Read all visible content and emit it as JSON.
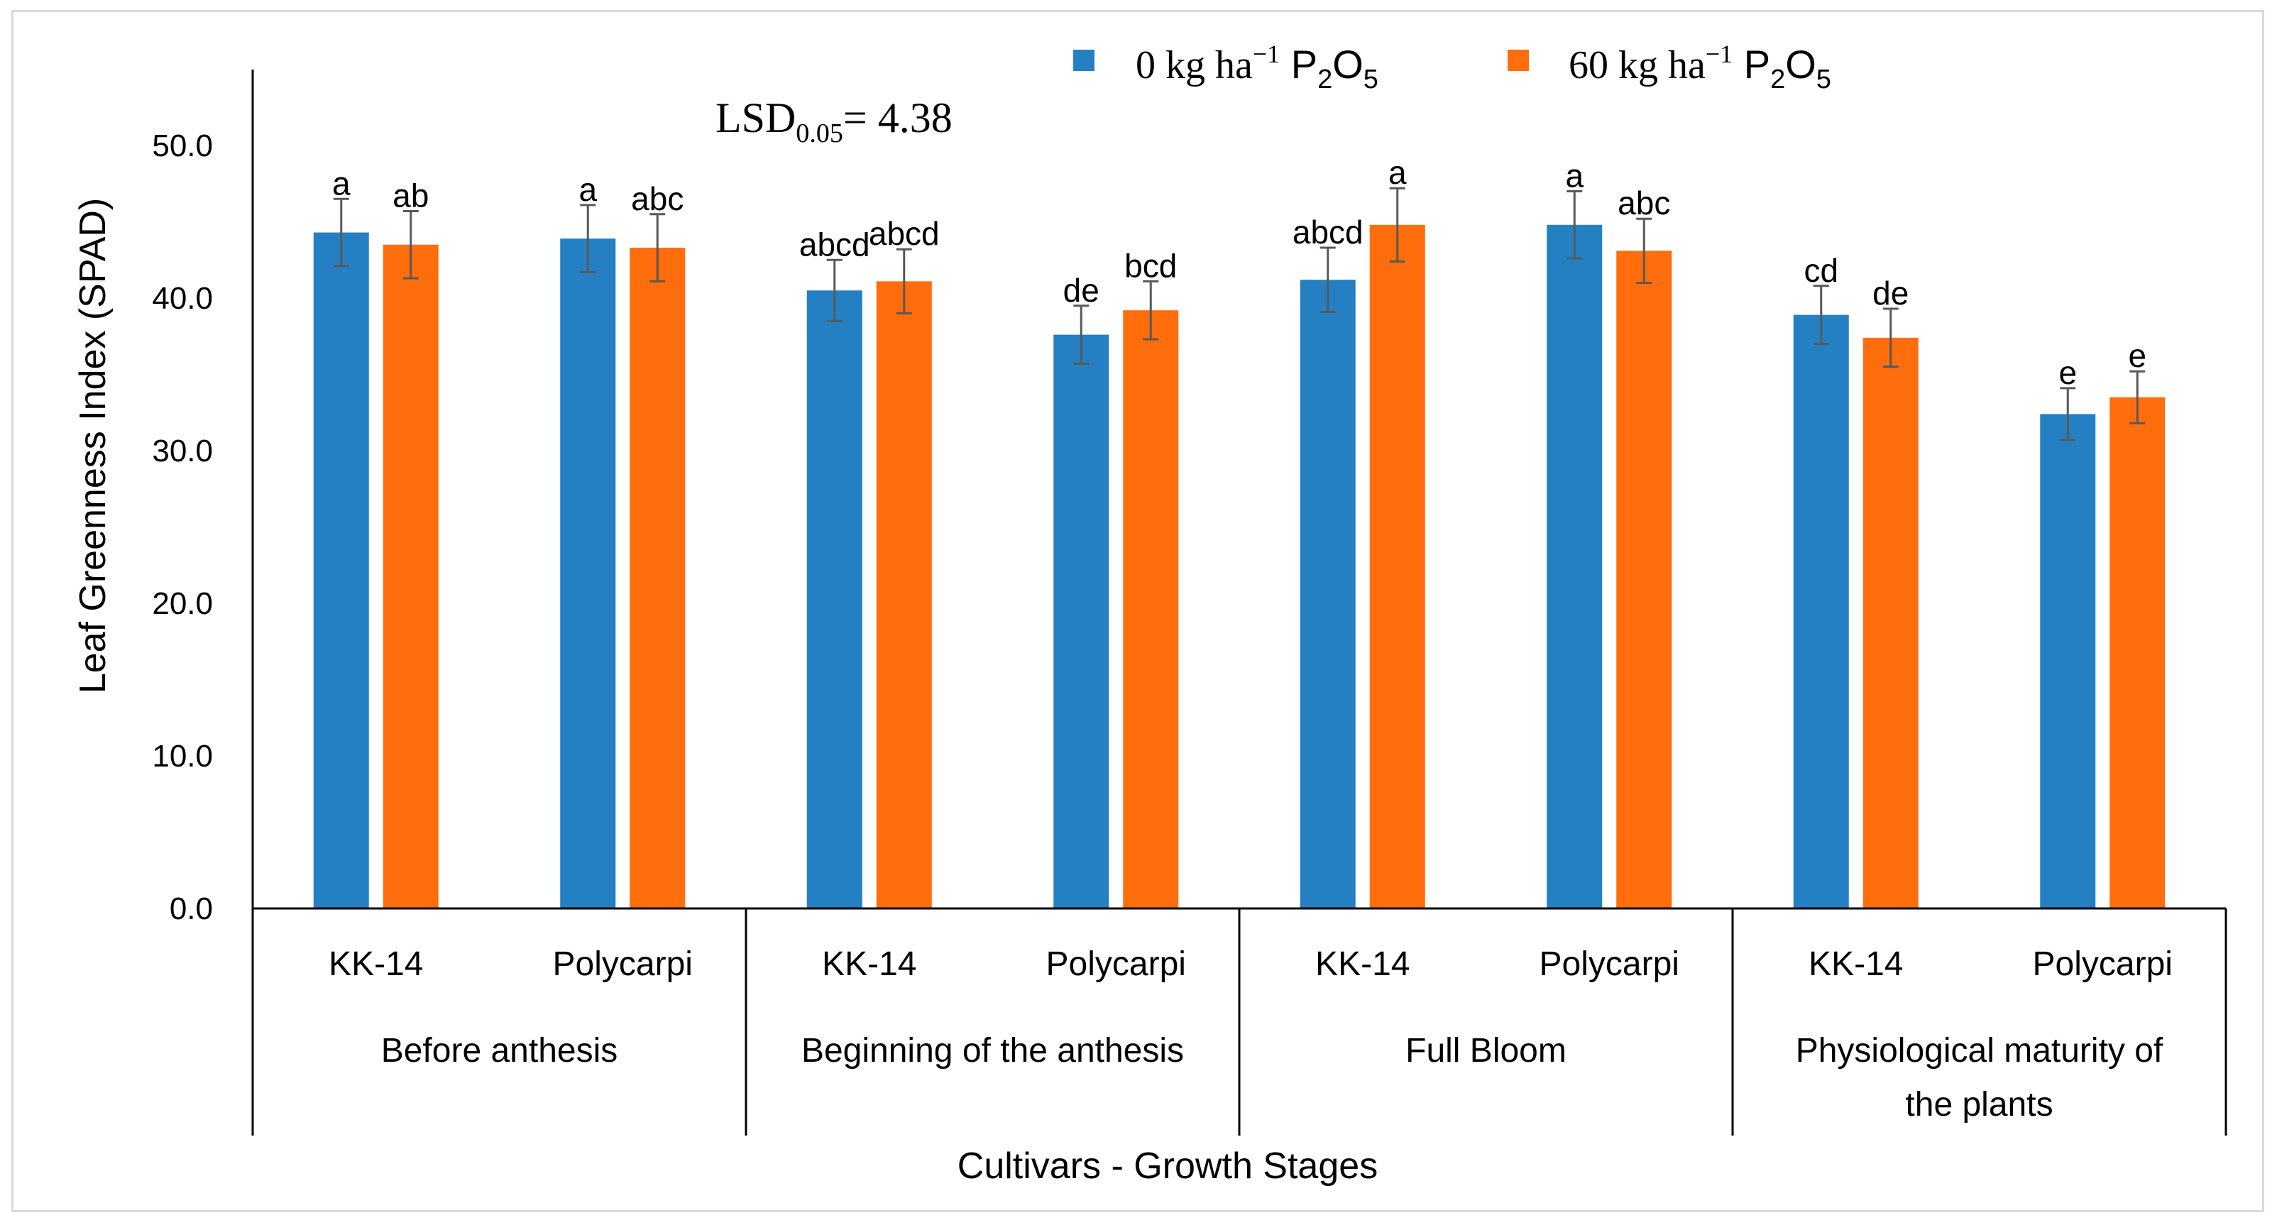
{
  "chart_data": {
    "type": "bar",
    "title": "",
    "xlabel": "Cultivars - Growth Stages",
    "ylabel": "Leaf Greenness Index (SPAD)",
    "ylim": [
      0,
      55
    ],
    "yticks": [
      "0.0",
      "10.0",
      "20.0",
      "30.0",
      "40.0",
      "50.0"
    ],
    "ytick_values": [
      0,
      10,
      20,
      30,
      40,
      50
    ],
    "grid": false,
    "legend_position": "top",
    "annotation": {
      "base": "LSD",
      "sub": "0.05",
      "rest": "= 4.38"
    },
    "groups": [
      {
        "label": "Before anthesis",
        "label_lines": [
          "Before anthesis"
        ],
        "cultivars": [
          "KK-14",
          "Polycarpi"
        ]
      },
      {
        "label": "Beginning of the anthesis",
        "label_lines": [
          "Beginning of the anthesis"
        ],
        "cultivars": [
          "KK-14",
          "Polycarpi"
        ]
      },
      {
        "label": "Full Bloom",
        "label_lines": [
          "Full Bloom"
        ],
        "cultivars": [
          "KK-14",
          "Polycarpi"
        ]
      },
      {
        "label": "Physiological maturity of the plants",
        "label_lines": [
          "Physiological maturity of",
          "the plants"
        ],
        "cultivars": [
          "KK-14",
          "Polycarpi"
        ]
      }
    ],
    "categories": [
      "KK-14",
      "Polycarpi",
      "KK-14",
      "Polycarpi",
      "KK-14",
      "Polycarpi",
      "KK-14",
      "Polycarpi"
    ],
    "series": [
      {
        "name": "0 kg ha-1 P2O5",
        "legend": {
          "pre": "0 kg ha",
          "sup": "−1",
          "chem": "P",
          "sub": "2",
          "chem2": "O",
          "sub2": "5"
        },
        "color": "#2580c3",
        "values": [
          44.3,
          43.9,
          40.5,
          37.6,
          41.2,
          44.8,
          38.9,
          32.4
        ],
        "errors": [
          2.2,
          2.2,
          2.0,
          1.9,
          2.1,
          2.2,
          1.9,
          1.7
        ],
        "letters": [
          "a",
          "a",
          "abcd",
          "de",
          "abcd",
          "a",
          "cd",
          "e"
        ]
      },
      {
        "name": "60 kg ha-1 P2O5",
        "legend": {
          "pre": "60 kg ha",
          "sup": "−1",
          "chem": "P",
          "sub": "2",
          "chem2": "O",
          "sub2": "5"
        },
        "color": "#ff6d0c",
        "values": [
          43.5,
          43.3,
          41.1,
          39.2,
          44.8,
          43.1,
          37.4,
          33.5
        ],
        "errors": [
          2.2,
          2.2,
          2.1,
          1.9,
          2.4,
          2.1,
          1.9,
          1.7
        ],
        "letters": [
          "ab",
          "abc",
          "abcd",
          "bcd",
          "a",
          "abc",
          "de",
          "e"
        ]
      }
    ]
  }
}
